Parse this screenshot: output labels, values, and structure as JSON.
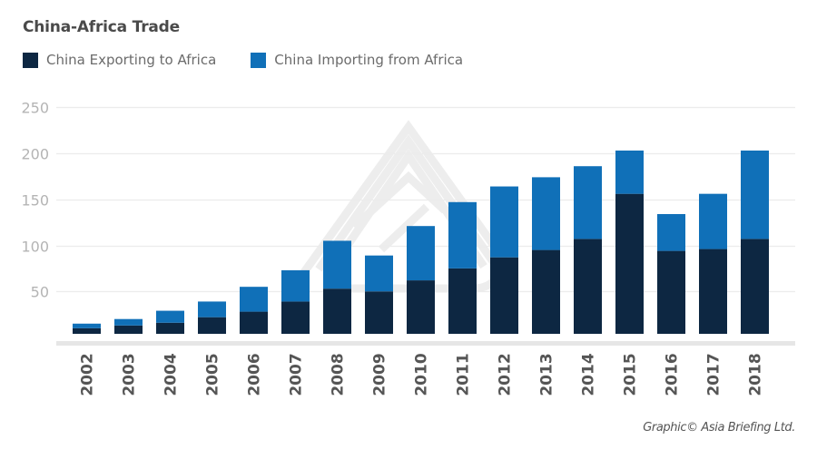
{
  "title": "China-Africa Trade",
  "credit": "Graphic© Asia Briefing Ltd.",
  "colors": {
    "exports": "#0d2742",
    "imports": "#1070b8",
    "grid": "#ececec",
    "axis": "#e6e6e6",
    "watermark": "#ededed"
  },
  "chart_data": {
    "type": "bar",
    "stacked": true,
    "title": "China-Africa Trade",
    "xlabel": "",
    "ylabel": "",
    "ylim": [
      0,
      250
    ],
    "yticks": [
      50,
      100,
      150,
      200,
      250
    ],
    "grid": true,
    "legend_position": "top-left",
    "categories": [
      "2002",
      "2003",
      "2004",
      "2005",
      "2006",
      "2007",
      "2008",
      "2009",
      "2010",
      "2011",
      "2012",
      "2013",
      "2014",
      "2015",
      "2016",
      "2017",
      "2018"
    ],
    "series": [
      {
        "name": "China Exporting to Africa",
        "color": "#0d2742",
        "values": [
          10,
          13,
          16,
          22,
          28,
          39,
          53,
          50,
          62,
          75,
          87,
          95,
          107,
          156,
          94,
          96,
          107
        ]
      },
      {
        "name": "China Importing from Africa",
        "color": "#1070b8",
        "values": [
          5,
          7,
          13,
          17,
          27,
          34,
          52,
          39,
          59,
          72,
          77,
          79,
          79,
          47,
          40,
          60,
          96
        ]
      }
    ]
  }
}
